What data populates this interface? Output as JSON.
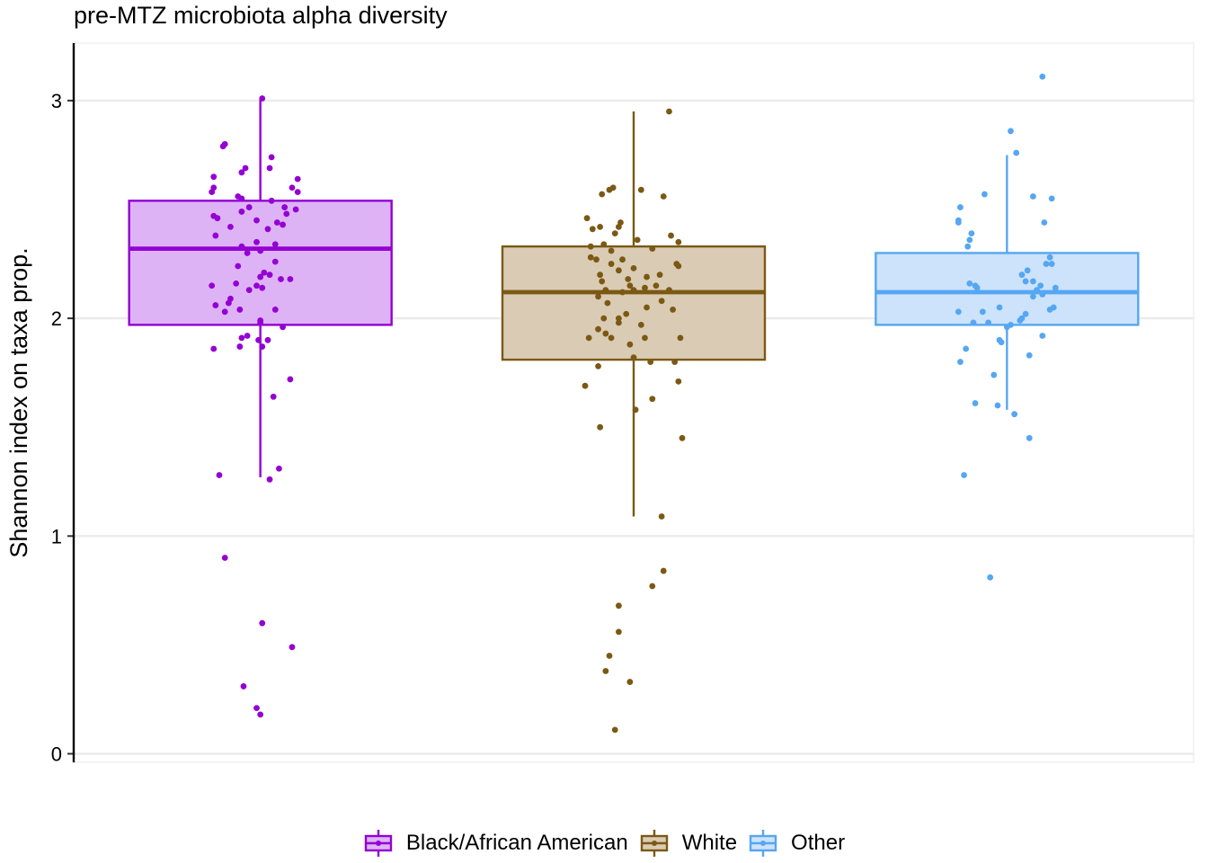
{
  "chart_data": {
    "type": "box",
    "title": "pre-MTZ microbiota alpha diversity",
    "ylabel": "Shannon index on taxa prop.",
    "xlabel": "",
    "ylim": [
      -0.04,
      3.25
    ],
    "yticks": [
      0,
      1,
      2,
      3
    ],
    "grid": "horizontal",
    "legend_position": "bottom",
    "groups": [
      {
        "name": "Black/African American",
        "color": "#9400D3",
        "fill": "#DDB3F6",
        "box": {
          "q1": 1.97,
          "median": 2.32,
          "q3": 2.54,
          "whisker_low": 1.27,
          "whisker_high": 3.01
        },
        "points": [
          {
            "j": 0.005,
            "y": 3.01
          },
          {
            "j": -0.095,
            "y": 2.8
          },
          {
            "j": -0.1,
            "y": 2.79
          },
          {
            "j": -0.04,
            "y": 2.69
          },
          {
            "j": 0.03,
            "y": 2.74
          },
          {
            "j": -0.05,
            "y": 2.67
          },
          {
            "j": 0.025,
            "y": 2.69
          },
          {
            "j": -0.125,
            "y": 2.65
          },
          {
            "j": -0.125,
            "y": 2.6
          },
          {
            "j": -0.13,
            "y": 2.58
          },
          {
            "j": 0.1,
            "y": 2.64
          },
          {
            "j": 0.085,
            "y": 2.6
          },
          {
            "j": 0.1,
            "y": 2.58
          },
          {
            "j": -0.06,
            "y": 2.56
          },
          {
            "j": -0.05,
            "y": 2.55
          },
          {
            "j": 0.03,
            "y": 2.54
          },
          {
            "j": 0.065,
            "y": 2.51
          },
          {
            "j": -0.03,
            "y": 2.51
          },
          {
            "j": -0.05,
            "y": 2.49
          },
          {
            "j": 0.095,
            "y": 2.5
          },
          {
            "j": 0.07,
            "y": 2.48
          },
          {
            "j": -0.125,
            "y": 2.47
          },
          {
            "j": -0.115,
            "y": 2.46
          },
          {
            "j": -0.01,
            "y": 2.45
          },
          {
            "j": 0.045,
            "y": 2.44
          },
          {
            "j": 0.06,
            "y": 2.43
          },
          {
            "j": -0.08,
            "y": 2.42
          },
          {
            "j": 0.02,
            "y": 2.41
          },
          {
            "j": -0.12,
            "y": 2.38
          },
          {
            "j": -0.01,
            "y": 2.35
          },
          {
            "j": 0.04,
            "y": 2.34
          },
          {
            "j": -0.05,
            "y": 2.33
          },
          {
            "j": 0.0,
            "y": 2.31
          },
          {
            "j": -0.035,
            "y": 2.3
          },
          {
            "j": 0.04,
            "y": 2.26
          },
          {
            "j": -0.06,
            "y": 2.24
          },
          {
            "j": 0.01,
            "y": 2.21
          },
          {
            "j": 0.025,
            "y": 2.2
          },
          {
            "j": 0.0,
            "y": 2.19
          },
          {
            "j": 0.08,
            "y": 2.18
          },
          {
            "j": 0.055,
            "y": 2.18
          },
          {
            "j": -0.065,
            "y": 2.16
          },
          {
            "j": -0.13,
            "y": 2.15
          },
          {
            "j": -0.01,
            "y": 2.15
          },
          {
            "j": -0.03,
            "y": 2.13
          },
          {
            "j": 0.005,
            "y": 2.14
          },
          {
            "j": -0.08,
            "y": 2.09
          },
          {
            "j": -0.085,
            "y": 2.07
          },
          {
            "j": -0.12,
            "y": 2.06
          },
          {
            "j": -0.095,
            "y": 2.03
          },
          {
            "j": -0.055,
            "y": 2.04
          },
          {
            "j": 0.04,
            "y": 2.04
          },
          {
            "j": 0.0,
            "y": 1.99
          },
          {
            "j": 0.0,
            "y": 1.98
          },
          {
            "j": 0.06,
            "y": 1.96
          },
          {
            "j": -0.035,
            "y": 1.92
          },
          {
            "j": -0.05,
            "y": 1.91
          },
          {
            "j": 0.02,
            "y": 1.9
          },
          {
            "j": -0.005,
            "y": 1.9
          },
          {
            "j": -0.055,
            "y": 1.87
          },
          {
            "j": 0.005,
            "y": 1.87
          },
          {
            "j": -0.125,
            "y": 1.86
          },
          {
            "j": 0.08,
            "y": 1.72
          },
          {
            "j": 0.035,
            "y": 1.64
          },
          {
            "j": 0.05,
            "y": 1.31
          },
          {
            "j": -0.11,
            "y": 1.28
          },
          {
            "j": 0.025,
            "y": 1.26
          },
          {
            "j": -0.095,
            "y": 0.9
          },
          {
            "j": 0.005,
            "y": 0.6
          },
          {
            "j": 0.085,
            "y": 0.49
          },
          {
            "j": -0.045,
            "y": 0.31
          },
          {
            "j": -0.01,
            "y": 0.21
          },
          {
            "j": 0.0,
            "y": 0.18
          }
        ]
      },
      {
        "name": "White",
        "color": "#7B5914",
        "fill": "#DACBB5",
        "box": {
          "q1": 1.81,
          "median": 2.12,
          "q3": 2.33,
          "whisker_low": 1.09,
          "whisker_high": 2.95
        },
        "points": [
          {
            "j": 0.095,
            "y": 2.95
          },
          {
            "j": -0.055,
            "y": 2.6
          },
          {
            "j": -0.065,
            "y": 2.59
          },
          {
            "j": 0.02,
            "y": 2.59
          },
          {
            "j": -0.085,
            "y": 2.57
          },
          {
            "j": 0.08,
            "y": 2.56
          },
          {
            "j": -0.125,
            "y": 2.46
          },
          {
            "j": -0.035,
            "y": 2.44
          },
          {
            "j": -0.04,
            "y": 2.42
          },
          {
            "j": -0.09,
            "y": 2.42
          },
          {
            "j": -0.11,
            "y": 2.41
          },
          {
            "j": -0.05,
            "y": 2.39
          },
          {
            "j": 0.1,
            "y": 2.38
          },
          {
            "j": 0.01,
            "y": 2.36
          },
          {
            "j": 0.12,
            "y": 2.35
          },
          {
            "j": -0.08,
            "y": 2.34
          },
          {
            "j": -0.115,
            "y": 2.33
          },
          {
            "j": 0.05,
            "y": 2.32
          },
          {
            "j": -0.06,
            "y": 2.31
          },
          {
            "j": -0.115,
            "y": 2.28
          },
          {
            "j": -0.1,
            "y": 2.27
          },
          {
            "j": -0.03,
            "y": 2.27
          },
          {
            "j": -0.06,
            "y": 2.25
          },
          {
            "j": 0.115,
            "y": 2.25
          },
          {
            "j": 0.12,
            "y": 2.24
          },
          {
            "j": 0.0,
            "y": 2.23
          },
          {
            "j": -0.04,
            "y": 2.22
          },
          {
            "j": -0.09,
            "y": 2.2
          },
          {
            "j": 0.07,
            "y": 2.2
          },
          {
            "j": 0.035,
            "y": 2.19
          },
          {
            "j": -0.015,
            "y": 2.18
          },
          {
            "j": -0.085,
            "y": 2.17
          },
          {
            "j": -0.01,
            "y": 2.15
          },
          {
            "j": 0.06,
            "y": 2.15
          },
          {
            "j": 0.03,
            "y": 2.14
          },
          {
            "j": 0.0,
            "y": 2.13
          },
          {
            "j": -0.075,
            "y": 2.13
          },
          {
            "j": -0.03,
            "y": 2.12
          },
          {
            "j": 0.095,
            "y": 2.13
          },
          {
            "j": -0.095,
            "y": 2.1
          },
          {
            "j": -0.07,
            "y": 2.07
          },
          {
            "j": 0.075,
            "y": 2.08
          },
          {
            "j": 0.035,
            "y": 2.05
          },
          {
            "j": 0.105,
            "y": 2.04
          },
          {
            "j": -0.02,
            "y": 2.02
          },
          {
            "j": -0.08,
            "y": 2.0
          },
          {
            "j": -0.04,
            "y": 2.0
          },
          {
            "j": -0.04,
            "y": 1.98
          },
          {
            "j": 0.02,
            "y": 1.97
          },
          {
            "j": -0.095,
            "y": 1.95
          },
          {
            "j": -0.075,
            "y": 1.93
          },
          {
            "j": -0.06,
            "y": 1.91
          },
          {
            "j": -0.12,
            "y": 1.91
          },
          {
            "j": 0.03,
            "y": 1.91
          },
          {
            "j": -0.01,
            "y": 1.88
          },
          {
            "j": 0.125,
            "y": 1.91
          },
          {
            "j": 0.045,
            "y": 1.8
          },
          {
            "j": 0.0,
            "y": 1.82
          },
          {
            "j": 0.11,
            "y": 1.8
          },
          {
            "j": -0.095,
            "y": 1.78
          },
          {
            "j": 0.12,
            "y": 1.71
          },
          {
            "j": -0.13,
            "y": 1.69
          },
          {
            "j": 0.05,
            "y": 1.63
          },
          {
            "j": 0.005,
            "y": 1.58
          },
          {
            "j": -0.09,
            "y": 1.5
          },
          {
            "j": 0.13,
            "y": 1.45
          },
          {
            "j": 0.075,
            "y": 1.09
          },
          {
            "j": 0.08,
            "y": 0.84
          },
          {
            "j": 0.05,
            "y": 0.77
          },
          {
            "j": -0.04,
            "y": 0.68
          },
          {
            "j": -0.04,
            "y": 0.56
          },
          {
            "j": -0.065,
            "y": 0.45
          },
          {
            "j": -0.075,
            "y": 0.38
          },
          {
            "j": -0.01,
            "y": 0.33
          },
          {
            "j": -0.05,
            "y": 0.11
          }
        ]
      },
      {
        "name": "Other",
        "color": "#56A6F2",
        "fill": "#CCE3FB",
        "box": {
          "q1": 1.97,
          "median": 2.12,
          "q3": 2.3,
          "whisker_low": 1.58,
          "whisker_high": 2.75
        },
        "points": [
          {
            "j": 0.095,
            "y": 3.11
          },
          {
            "j": 0.01,
            "y": 2.86
          },
          {
            "j": 0.025,
            "y": 2.76
          },
          {
            "j": -0.06,
            "y": 2.57
          },
          {
            "j": 0.07,
            "y": 2.56
          },
          {
            "j": 0.12,
            "y": 2.55
          },
          {
            "j": -0.125,
            "y": 2.51
          },
          {
            "j": -0.13,
            "y": 2.45
          },
          {
            "j": -0.13,
            "y": 2.44
          },
          {
            "j": 0.1,
            "y": 2.44
          },
          {
            "j": -0.095,
            "y": 2.39
          },
          {
            "j": -0.1,
            "y": 2.36
          },
          {
            "j": -0.105,
            "y": 2.33
          },
          {
            "j": 0.115,
            "y": 2.28
          },
          {
            "j": 0.105,
            "y": 2.25
          },
          {
            "j": 0.12,
            "y": 2.25
          },
          {
            "j": 0.055,
            "y": 2.22
          },
          {
            "j": 0.04,
            "y": 2.2
          },
          {
            "j": 0.05,
            "y": 2.17
          },
          {
            "j": 0.07,
            "y": 2.17
          },
          {
            "j": -0.1,
            "y": 2.16
          },
          {
            "j": -0.085,
            "y": 2.15
          },
          {
            "j": -0.08,
            "y": 2.14
          },
          {
            "j": 0.09,
            "y": 2.15
          },
          {
            "j": 0.13,
            "y": 2.14
          },
          {
            "j": 0.08,
            "y": 2.13
          },
          {
            "j": 0.095,
            "y": 2.11
          },
          {
            "j": 0.07,
            "y": 2.1
          },
          {
            "j": -0.02,
            "y": 2.05
          },
          {
            "j": 0.125,
            "y": 2.05
          },
          {
            "j": 0.115,
            "y": 2.04
          },
          {
            "j": -0.13,
            "y": 2.03
          },
          {
            "j": -0.065,
            "y": 2.03
          },
          {
            "j": 0.05,
            "y": 2.02
          },
          {
            "j": 0.04,
            "y": 2.0
          },
          {
            "j": 0.035,
            "y": 1.99
          },
          {
            "j": -0.05,
            "y": 1.98
          },
          {
            "j": -0.09,
            "y": 1.98
          },
          {
            "j": 0.01,
            "y": 1.97
          },
          {
            "j": 0.0,
            "y": 1.96
          },
          {
            "j": 0.095,
            "y": 1.92
          },
          {
            "j": -0.02,
            "y": 1.9
          },
          {
            "j": -0.015,
            "y": 1.89
          },
          {
            "j": -0.11,
            "y": 1.86
          },
          {
            "j": -0.125,
            "y": 1.8
          },
          {
            "j": 0.06,
            "y": 1.83
          },
          {
            "j": -0.035,
            "y": 1.74
          },
          {
            "j": -0.085,
            "y": 1.61
          },
          {
            "j": -0.025,
            "y": 1.6
          },
          {
            "j": 0.02,
            "y": 1.56
          },
          {
            "j": 0.06,
            "y": 1.45
          },
          {
            "j": -0.115,
            "y": 1.28
          },
          {
            "j": -0.045,
            "y": 0.81
          }
        ]
      }
    ]
  }
}
